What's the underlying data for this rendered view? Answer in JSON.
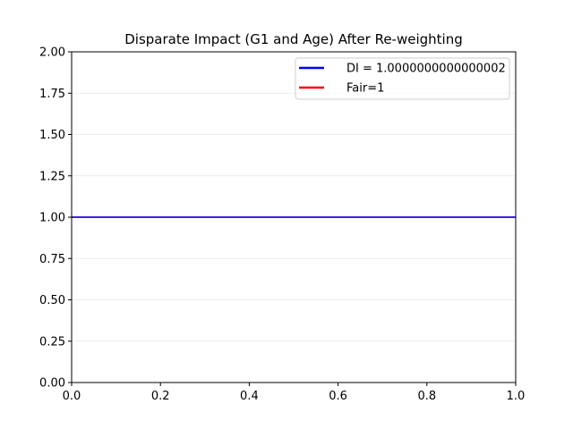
{
  "chart_data": {
    "type": "line",
    "title": "Disparate Impact (G1 and Age) After Re-weighting",
    "xlabel": "",
    "ylabel": "",
    "xlim": [
      0.0,
      1.0
    ],
    "ylim": [
      0.0,
      2.0
    ],
    "x_ticks": [
      "0.0",
      "0.2",
      "0.4",
      "0.6",
      "0.8",
      "1.0"
    ],
    "y_ticks": [
      "0.00",
      "0.25",
      "0.50",
      "0.75",
      "1.00",
      "1.25",
      "1.50",
      "1.75",
      "2.00"
    ],
    "grid": "horizontal",
    "legend_position": "upper right",
    "series": [
      {
        "name": "DI = 1.0000000000000002",
        "y": 1.0000000000000002,
        "color": "#0000ff"
      },
      {
        "name": "Fair=1",
        "y": 1.0,
        "color": "#ff0000"
      }
    ]
  }
}
